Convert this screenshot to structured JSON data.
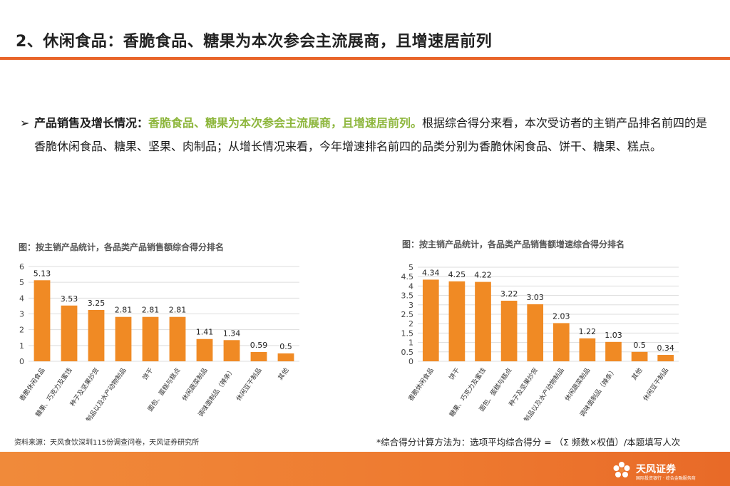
{
  "title": "2、休闲食品：香脆食品、糖果为本次参会主流展商，且增速居前列",
  "summary": {
    "bullet": "➢",
    "lead": "产品销售及增长情况：",
    "highlight": "香脆食品、糖果为本次参会主流展商，且增速居前列。",
    "body": "根据综合得分来看，本次受访者的主销产品排名前四的是香脆休闲食品、糖果、坚果、肉制品；从增长情况来看，今年增速排名前四的品类分别为香脆休闲食品、饼干、糖果、糕点。"
  },
  "chart_data": [
    {
      "type": "bar",
      "title": "图：按主销产品统计，各品类产品销售额综合得分排名",
      "categories": [
        "香脆休闲食品",
        "糖果、巧克力及蜜饯",
        "种子及坚果炒货",
        "肉制品以及水产动物制品",
        "饼干",
        "面包、蛋糕与糕点",
        "休闲蔬菜制品",
        "调味面制品（辣条）",
        "休闲豆干制品",
        "其他"
      ],
      "values": [
        5.13,
        3.53,
        3.25,
        2.81,
        2.81,
        2.81,
        1.41,
        1.34,
        0.59,
        0.5
      ],
      "value_labels": [
        "5.13",
        "3.53",
        "3.25",
        "2.81",
        "2.81",
        "2.81",
        "1.41",
        "1.34",
        "0.59",
        "0.5"
      ],
      "ylim": [
        0,
        6
      ],
      "yticks": [
        "0",
        "1",
        "2",
        "3",
        "4",
        "5",
        "6"
      ],
      "grid": true,
      "color": "#F08A24"
    },
    {
      "type": "bar",
      "title": "图：按主销产品统计，各品类产品销售额增速综合得分排名",
      "categories": [
        "香脆休闲食品",
        "饼干",
        "糖果、巧克力及蜜饯",
        "面包、蛋糕与糕点",
        "种子及坚果炒货",
        "肉制品以及水产动物制品",
        "休闲蔬菜制品",
        "调味面制品（辣条）",
        "其他",
        "休闲豆干制品"
      ],
      "values": [
        4.34,
        4.25,
        4.22,
        3.22,
        3.03,
        2.03,
        1.22,
        1.03,
        0.5,
        0.34
      ],
      "value_labels": [
        "4.34",
        "4.25",
        "4.22",
        "3.22",
        "3.03",
        "2.03",
        "1.22",
        "1.03",
        "0.5",
        "0.34"
      ],
      "ylim": [
        0,
        5
      ],
      "yticks": [
        "0",
        "0.5",
        "1",
        "1.5",
        "2",
        "2.5",
        "3",
        "3.5",
        "4",
        "4.5",
        "5"
      ],
      "grid": true,
      "color": "#F08A24"
    }
  ],
  "source": "资料来源：天风食饮深圳115份调查问卷，天风证券研究所",
  "note": "*综合得分计算方法为：选项平均综合得分 = （Σ 频数×权值）/本题填写人次",
  "logo": {
    "name": "天风证券",
    "sub": "国际投资银行 · 综合金融服务商"
  },
  "colors": {
    "accent": "#E8652A",
    "highlight": "#8DB63C",
    "bar": "#F08A24"
  }
}
